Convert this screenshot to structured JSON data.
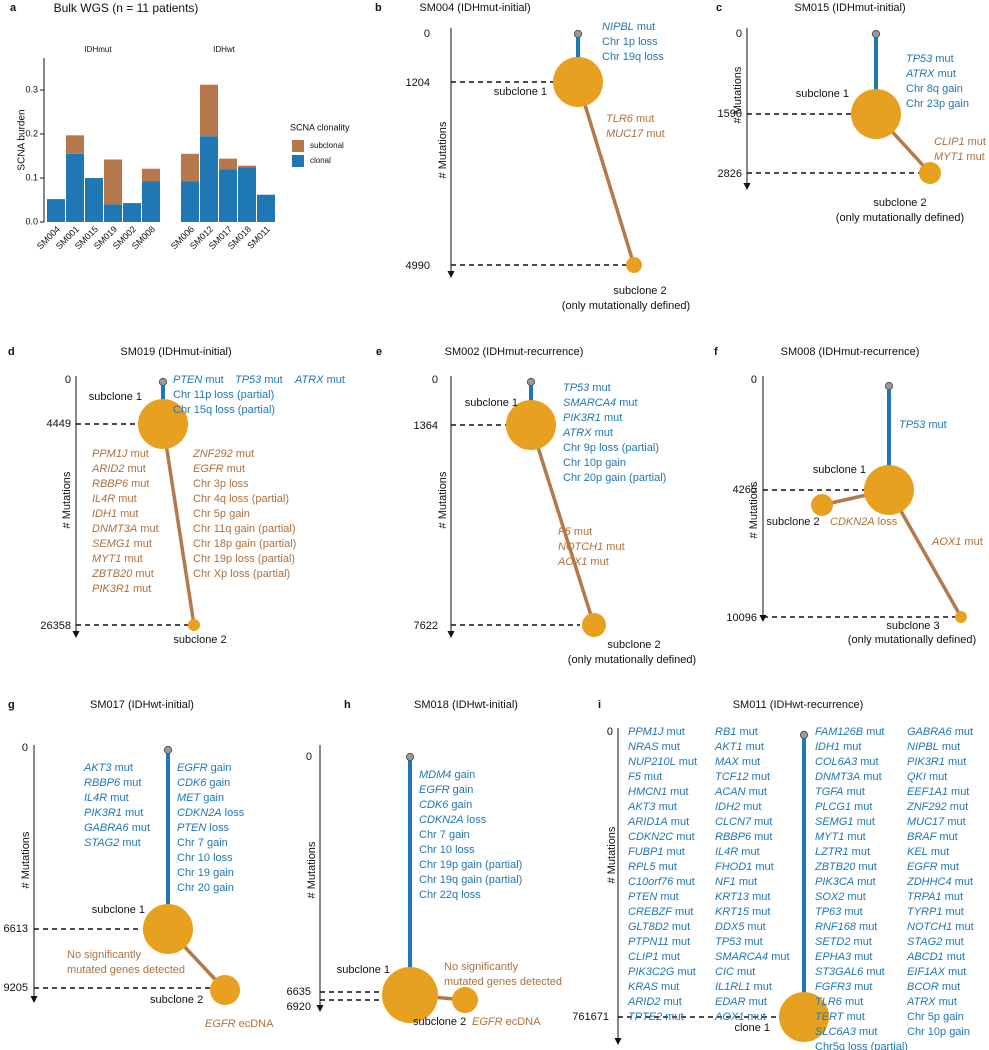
{
  "figure": {
    "colors": {
      "clonal": "#1f77b4",
      "subclonal": "#b5784a",
      "node": "#e8a020",
      "clonal_text": "#1f77b4",
      "subclonal_text": "#b0703c",
      "root": "#9a9a9a",
      "axis": "#111111"
    }
  },
  "chart_data": [
    {
      "id": "a",
      "type": "bar",
      "stacked": true,
      "panel_letter": "a",
      "title": "Bulk WGS (n = 11 patients)",
      "ylabel": "SCNA burden",
      "ylim": [
        0,
        0.35
      ],
      "yticks": [
        "0.0",
        "0.1",
        "0.2",
        "0.3"
      ],
      "legend_title": "SCNA clonality",
      "legend": [
        "subclonal",
        "clonal"
      ],
      "groups": [
        {
          "name": "IDHmut",
          "categories": [
            "SM004",
            "SM001",
            "SM015",
            "SM019",
            "SM002",
            "SM008"
          ],
          "clonal": [
            0.052,
            0.155,
            0.1,
            0.04,
            0.043,
            0.093
          ],
          "subclonal": [
            0.0,
            0.042,
            0.0,
            0.102,
            0.0,
            0.028
          ]
        },
        {
          "name": "IDHwt",
          "categories": [
            "SM006",
            "SM012",
            "SM017",
            "SM018",
            "SM011"
          ],
          "clonal": [
            0.092,
            0.195,
            0.12,
            0.124,
            0.062
          ],
          "subclonal": [
            0.063,
            0.117,
            0.024,
            0.004,
            0.0
          ]
        }
      ]
    },
    {
      "id": "b",
      "type": "tree",
      "panel_letter": "b",
      "title": "SM004 (IDHmut-initial)",
      "ylabel": "# Mutations",
      "ticks": [
        "0",
        "1204",
        "4990"
      ],
      "clonal_label": "subclone 1",
      "clonal_events": [
        "NIPBL mut",
        "Chr 1p loss",
        "Chr 19q loss"
      ],
      "subclonal_events": [
        "TLR6 mut",
        "MUC17 mut"
      ],
      "subclones": [
        {
          "label": "subclone 2",
          "note": "(only mutationally defined)"
        }
      ]
    },
    {
      "id": "c",
      "type": "tree",
      "panel_letter": "c",
      "title": "SM015 (IDHmut-initial)",
      "ylabel": "# Mutations",
      "ticks": [
        "0",
        "1590",
        "2826"
      ],
      "clonal_label": "subclone 1",
      "clonal_events": [
        "TP53 mut",
        "ATRX mut",
        "Chr 8q gain",
        "Chr 23p gain"
      ],
      "subclonal_events": [
        "CLIP1 mut",
        "MYT1 mut"
      ],
      "subclones": [
        {
          "label": "subclone 2",
          "note": "(only mutationally defined)"
        }
      ]
    },
    {
      "id": "d",
      "type": "tree",
      "panel_letter": "d",
      "title": "SM019 (IDHmut-initial)",
      "ylabel": "# Mutations",
      "ticks": [
        "0",
        "4449",
        "26358"
      ],
      "clonal_label": "subclone 1",
      "clonal_inline": [
        "PTEN mut",
        "TP53 mut",
        "ATRX mut"
      ],
      "clonal_events": [
        "Chr 11p loss (partial)",
        "Chr 15q loss (partial)"
      ],
      "subclonal_events_col1": [
        "PPM1J mut",
        "ARID2 mut",
        "RBBP6 mut",
        "IL4R mut",
        "IDH1 mut",
        "DNMT3A mut",
        "SEMG1 mut",
        "MYT1 mut",
        "ZBTB20 mut",
        "PIK3R1 mut"
      ],
      "subclonal_events_col2": [
        "ZNF292 mut",
        "EGFR mut",
        "Chr 3p loss",
        "Chr 4q loss (partial)",
        "Chr 5p gain",
        "Chr 11q gain (partial)",
        "Chr 18p gain (partial)",
        "Chr 19p loss (partial)",
        "Chr Xp loss (partial)"
      ],
      "subclones": [
        {
          "label": "subclone 2"
        }
      ]
    },
    {
      "id": "e",
      "type": "tree",
      "panel_letter": "e",
      "title": "SM002 (IDHmut-recurrence)",
      "ylabel": "# Mutations",
      "ticks": [
        "0",
        "1364",
        "7622"
      ],
      "clonal_label": "subclone 1",
      "clonal_events": [
        "TP53 mut",
        "SMARCA4 mut",
        "PIK3R1 mut",
        "ATRX mut",
        "Chr 9p loss (partial)",
        "Chr 10p gain",
        "Chr 20p gain (partial)"
      ],
      "subclonal_events": [
        "F5 mut",
        "NOTCH1 mut",
        "AOX1 mut"
      ],
      "subclones": [
        {
          "label": "subclone 2",
          "note": "(only mutationally defined)"
        }
      ]
    },
    {
      "id": "f",
      "type": "tree",
      "panel_letter": "f",
      "title": "SM008 (IDHmut-recurrence)",
      "ylabel": "# Mutations",
      "ticks": [
        "0",
        "4265",
        "10096"
      ],
      "clonal_label": "subclone 1",
      "clonal_events": [
        "TP53 mut"
      ],
      "subclonal_events": [
        "AOX1 mut"
      ],
      "side_events": [
        "CDKN2A loss"
      ],
      "subclones": [
        {
          "label": "subclone 2"
        },
        {
          "label": "subclone 3",
          "note": "(only mutationally defined)"
        }
      ]
    },
    {
      "id": "g",
      "type": "tree",
      "panel_letter": "g",
      "title": "SM017 (IDHwt-initial)",
      "ylabel": "# Mutations",
      "ticks": [
        "0",
        "6613",
        "9205"
      ],
      "clonal_label": "subclone 1",
      "clonal_events_col1": [
        "AKT3 mut",
        "RBBP6 mut",
        "IL4R mut",
        "PIK3R1 mut",
        "GABRA6 mut",
        "STAG2 mut"
      ],
      "clonal_events_col2": [
        "EGFR gain",
        "CDK6 gain",
        "MET gain",
        "CDKN2A loss",
        "PTEN loss",
        "Chr 7 gain",
        "Chr 10 loss",
        "Chr 19 gain",
        "Chr 20 gain"
      ],
      "subclonal_note": [
        "No significantly",
        "mutated genes detected"
      ],
      "subclones": [
        {
          "label": "subclone 2",
          "extra": "EGFR ecDNA"
        }
      ]
    },
    {
      "id": "h",
      "type": "tree",
      "panel_letter": "h",
      "title": "SM018 (IDHwt-initial)",
      "ylabel": "# Mutations",
      "ticks": [
        "0",
        "6635",
        "6920"
      ],
      "clonal_label": "subclone 1",
      "clonal_events": [
        "MDM4 gain",
        "EGFR gain",
        "CDK6 gain",
        "CDKN2A loss",
        "Chr 7 gain",
        "Chr 10 loss",
        "Chr 19p gain (partial)",
        "Chr 19q gain (partial)",
        "Chr 22q loss"
      ],
      "subclonal_note": [
        "No significantly",
        "mutated genes detected"
      ],
      "subclones": [
        {
          "label": "subclone 2",
          "extra": "EGFR ecDNA"
        }
      ]
    },
    {
      "id": "i",
      "type": "tree",
      "panel_letter": "i",
      "title": "SM011 (IDHwt-recurrence)",
      "ylabel": "# Mutations",
      "ticks": [
        "0",
        "761671"
      ],
      "clonal_label": "clone 1",
      "col1": [
        "PPM1J mut",
        "NRAS mut",
        "NUP210L mut",
        "F5 mut",
        "HMCN1 mut",
        "AKT3 mut",
        "ARID1A mut",
        "CDKN2C mut",
        "FUBP1 mut",
        "RPL5 mut",
        "C10orf76 mut",
        "PTEN mut",
        "CREBZF mut",
        "GLT8D2 mut",
        "PTPN11 mut",
        "CLIP1 mut",
        "PIK3C2G mut",
        "KRAS mut",
        "ARID2 mut",
        "TPTE2 mut"
      ],
      "col2": [
        "RB1 mut",
        "AKT1 mut",
        "MAX mut",
        "TCF12 mut",
        "ACAN mut",
        "IDH2 mut",
        "CLCN7 mut",
        "RBBP6 mut",
        "IL4R mut",
        "FHOD1 mut",
        "NF1 mut",
        "KRT13 mut",
        "KRT15 mut",
        "DDX5 mut",
        "TP53 mut",
        "SMARCA4 mut",
        "CIC mut",
        "IL1RL1 mut",
        "EDAR mut",
        "AOX1 mut"
      ],
      "col3": [
        "FAM126B mut",
        "IDH1 mut",
        "COL6A3 mut",
        "DNMT3A mut",
        "TGFA mut",
        "PLCG1 mut",
        "SEMG1 mut",
        "MYT1 mut",
        "LZTR1 mut",
        "ZBTB20 mut",
        "PIK3CA mut",
        "SOX2 mut",
        "TP63 mut",
        "RNF168 mut",
        "SETD2 mut",
        "EPHA3 mut",
        "ST3GAL6 mut",
        "FGFR3 mut",
        "TLR6 mut",
        "TERT mut",
        "SLC6A3 mut",
        "Chr5q loss (partial)"
      ],
      "col4": [
        "GABRA6 mut",
        "NIPBL mut",
        "PIK3R1 mut",
        "QKI mut",
        "EEF1A1 mut",
        "ZNF292 mut",
        "MUC17 mut",
        "BRAF mut",
        "KEL mut",
        "EGFR mut",
        "ZDHHC4 mut",
        "TRPA1 mut",
        "TYRP1 mut",
        "NOTCH1 mut",
        "STAG2 mut",
        "ABCD1 mut",
        "EIF1AX mut",
        "BCOR mut",
        "ATRX mut",
        "Chr 5p gain",
        "Chr 10p gain"
      ]
    }
  ]
}
